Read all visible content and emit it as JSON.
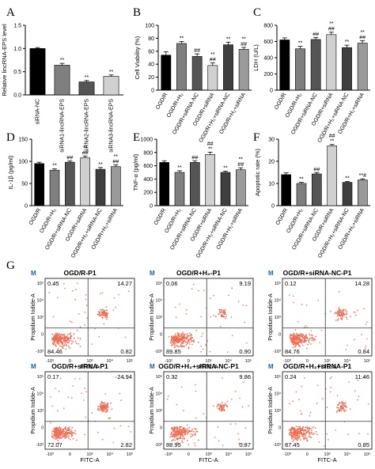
{
  "panel_letters": [
    "A",
    "B",
    "C",
    "D",
    "E",
    "F",
    "G"
  ],
  "chart_data": [
    {
      "id": "A",
      "type": "bar",
      "title": "",
      "ylabel": "Relative lincRNA-EPS level",
      "ylim": [
        0,
        1.5
      ],
      "yticks": [
        "0.0",
        "0.5",
        "1.0",
        "1.5"
      ],
      "categories": [
        "siRNA-NC",
        "siRNA1-lincRNA-EPS",
        "siRNA2-lincRNA-EPS",
        "siRNA3-lincRNA-EPS"
      ],
      "values": [
        1.0,
        0.64,
        0.28,
        0.4
      ],
      "errors": [
        0.02,
        0.04,
        0.03,
        0.03
      ],
      "colors": [
        "#000000",
        "#7f7f7f",
        "#555555",
        "#d0d0d0"
      ],
      "annotations": [
        "",
        "**",
        "**",
        "**"
      ]
    },
    {
      "id": "B",
      "type": "bar",
      "ylabel": "Cell Viability (%)",
      "ylim": [
        0,
        100
      ],
      "yticks": [
        "0",
        "20",
        "40",
        "60",
        "80",
        "100"
      ],
      "categories": [
        "OGD/R",
        "OGD/R+H₂",
        "OGD/R+siRNA-NC",
        "OGD/R+siRNA",
        "OGD/R+H₂+siRNA-NC",
        "OGD/R+H₂+siRNA"
      ],
      "values": [
        54,
        72,
        52,
        38,
        70,
        63
      ],
      "errors": [
        5,
        3,
        4,
        4,
        4,
        3
      ],
      "colors": [
        "#000000",
        "#7f7f7f",
        "#555555",
        "#d0d0d0",
        "#3f3f3f",
        "#9a9a9a"
      ],
      "annotations": [
        "",
        "**",
        "##",
        "**\n##",
        "**",
        "**\n##"
      ]
    },
    {
      "id": "C",
      "type": "bar",
      "ylabel": "LDH (U/L)",
      "ylim": [
        0,
        800
      ],
      "yticks": [
        "0",
        "200",
        "400",
        "600",
        "800"
      ],
      "categories": [
        "OGD/R",
        "OGD/R+H₂",
        "OGD/R+siRNA-NC",
        "OGD/R+siRNA",
        "OGD/R+H₂+siRNA-NC",
        "OGD/R+H₂+siRNA"
      ],
      "values": [
        620,
        510,
        625,
        685,
        525,
        580
      ],
      "errors": [
        25,
        30,
        25,
        30,
        30,
        30
      ],
      "colors": [
        "#000000",
        "#7f7f7f",
        "#555555",
        "#d0d0d0",
        "#3f3f3f",
        "#9a9a9a"
      ],
      "annotations": [
        "",
        "**",
        "##",
        "**\n##",
        "**",
        "**\n##"
      ]
    },
    {
      "id": "D",
      "type": "bar",
      "ylabel": "IL-1β (pg/ml)",
      "ylim": [
        0,
        150
      ],
      "yticks": [
        "0",
        "50",
        "100",
        "150"
      ],
      "categories": [
        "OGD/R",
        "OGD/R+H₂",
        "OGD/R+siRNA-NC",
        "OGD/R+siRNA",
        "OGD/R+H₂+siRNA-NC",
        "OGD/R+H₂+siRNA"
      ],
      "values": [
        95,
        80,
        98,
        108,
        82,
        88
      ],
      "errors": [
        3,
        3,
        3,
        4,
        4,
        4
      ],
      "colors": [
        "#000000",
        "#7f7f7f",
        "#555555",
        "#d0d0d0",
        "#3f3f3f",
        "#9a9a9a"
      ],
      "annotations": [
        "",
        "**",
        "##",
        "**\n##",
        "**",
        "**\n##"
      ]
    },
    {
      "id": "E",
      "type": "bar",
      "ylabel": "TNF-α (pg/ml)",
      "ylim": [
        0,
        1000
      ],
      "yticks": [
        "0",
        "200",
        "400",
        "600",
        "800",
        "1000"
      ],
      "categories": [
        "OGD/R",
        "OGD/R+H₂",
        "OGD/R+siRNA-NC",
        "OGD/R+siRNA",
        "OGD/R+H₂+siRNA-NC",
        "OGD/R+H₂+siRNA"
      ],
      "values": [
        650,
        500,
        650,
        770,
        500,
        540
      ],
      "errors": [
        25,
        25,
        25,
        35,
        20,
        30
      ],
      "colors": [
        "#000000",
        "#7f7f7f",
        "#555555",
        "#d0d0d0",
        "#3f3f3f",
        "#9a9a9a"
      ],
      "annotations": [
        "",
        "**",
        "##",
        "##\n**",
        "**",
        "**\n##"
      ]
    },
    {
      "id": "F",
      "type": "bar",
      "ylabel": "Apoptotic rate (%)",
      "ylim": [
        0,
        30
      ],
      "yticks": [
        "0",
        "10",
        "20",
        "30"
      ],
      "categories": [
        "OGD/R",
        "OGD/R+H₂",
        "OGD/R+siRNA-NC",
        "OGD/R+siRNA",
        "OGD/R+H₂+siRNA-NC",
        "OGD/R+H₂+siRNA"
      ],
      "values": [
        14.0,
        10.0,
        14.3,
        27.0,
        10.5,
        11.6
      ],
      "errors": [
        0.8,
        0.5,
        0.6,
        0.6,
        0.4,
        0.5
      ],
      "colors": [
        "#000000",
        "#7f7f7f",
        "#555555",
        "#d0d0d0",
        "#3f3f3f",
        "#9a9a9a"
      ],
      "annotations": [
        "",
        "**",
        "##",
        "##\n**",
        "**",
        "**#"
      ]
    },
    {
      "id": "G",
      "type": "scatter",
      "xlabel": "FITC-A",
      "ylabel": "Propidium Iodide-A",
      "x_ticks": [
        "-10³",
        "0",
        "10³",
        "10⁴",
        "10⁵"
      ],
      "y_ticks": [
        "10⁵",
        "10⁴",
        "10³",
        "0",
        "-10³"
      ],
      "gate_label": "M",
      "point_color": "#ee6f55",
      "plots": [
        {
          "title": "OGD/R-P1",
          "q1": "0.45",
          "q2": "14.27",
          "q3": "84.46",
          "q4": "0.82"
        },
        {
          "title": "OGD/R+H₂-P1",
          "q1": "0.06",
          "q2": "9.19",
          "q3": "89.85",
          "q4": "0.90"
        },
        {
          "title": "OGD/R+siRNA-NC-P1",
          "q1": "0.12",
          "q2": "14.28",
          "q3": "84.76",
          "q4": "0.84"
        },
        {
          "title": "OGD/R+siRNA-P1",
          "q1": "0.17",
          "q2": "24.94",
          "q3": "72.07",
          "q4": "2.82"
        },
        {
          "title": "OGD/R+H₂+siRNA-NC-P1",
          "q1": "0.32",
          "q2": "9.86",
          "q3": "88.95",
          "q4": "0.87"
        },
        {
          "title": "OGD/R+H₂+siRNA-P1",
          "q1": "0.24",
          "q2": "11.46",
          "q3": "87.45",
          "q4": "0.85"
        }
      ]
    }
  ]
}
